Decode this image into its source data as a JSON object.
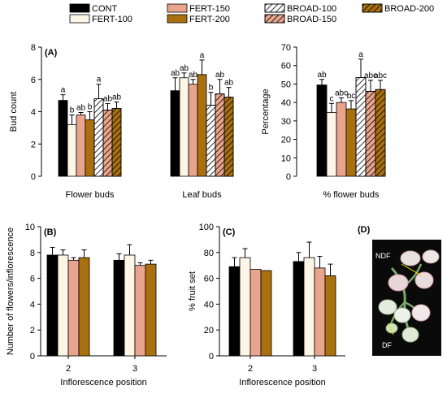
{
  "figure": {
    "legend": {
      "entries": [
        {
          "key": "CONT",
          "label": "CONT"
        },
        {
          "key": "FERT-100",
          "label": "FERT-100"
        },
        {
          "key": "FERT-150",
          "label": "FERT-150"
        },
        {
          "key": "FERT-200",
          "label": "FERT-200"
        },
        {
          "key": "BROAD-100",
          "label": "BROAD-100"
        },
        {
          "key": "BROAD-150",
          "label": "BROAD-150"
        },
        {
          "key": "BROAD-200",
          "label": "BROAD-200"
        }
      ]
    },
    "photo": {
      "panel": "(D)",
      "label_top": "NDF",
      "label_bottom": "DF"
    }
  },
  "treatments": {
    "CONT": {
      "fill": "#000000",
      "hatch": false
    },
    "FERT-100": {
      "fill": "#fdf5e6",
      "hatch": false
    },
    "FERT-150": {
      "fill": "#e8a48c",
      "hatch": false
    },
    "FERT-200": {
      "fill": "#a8700e",
      "hatch": false
    },
    "BROAD-100": {
      "fill": "#ffffff",
      "hatch": true
    },
    "BROAD-150": {
      "fill": "#e8a48c",
      "hatch": true
    },
    "BROAD-200": {
      "fill": "#a8700e",
      "hatch": true
    }
  },
  "chart_data": [
    {
      "panel": "(A)",
      "type": "bar",
      "ylabel": "Bud count",
      "ylim": [
        0,
        8
      ],
      "yticks": [
        0,
        2,
        4,
        6,
        8
      ],
      "categories": [
        "Flower buds",
        "Leaf buds"
      ],
      "series": [
        {
          "name": "CONT",
          "values": [
            4.7,
            5.3
          ],
          "errors": [
            0.35,
            0.8
          ],
          "letters": [
            "a",
            "ab"
          ]
        },
        {
          "name": "FERT-100",
          "values": [
            3.2,
            6.1
          ],
          "errors": [
            0.6,
            0.3
          ],
          "letters": [
            "b",
            "ab"
          ]
        },
        {
          "name": "FERT-150",
          "values": [
            3.8,
            5.7
          ],
          "errors": [
            0.15,
            0.3
          ],
          "letters": [
            "ab",
            "ab"
          ]
        },
        {
          "name": "FERT-200",
          "values": [
            3.5,
            6.3
          ],
          "errors": [
            0.5,
            0.9
          ],
          "letters": [
            "b",
            "a"
          ]
        },
        {
          "name": "BROAD-100",
          "values": [
            4.8,
            4.4
          ],
          "errors": [
            0.9,
            0.8
          ],
          "letters": [
            "a",
            "b"
          ]
        },
        {
          "name": "BROAD-150",
          "values": [
            4.1,
            5.1
          ],
          "errors": [
            0.4,
            0.9
          ],
          "letters": [
            "ab",
            "ab"
          ]
        },
        {
          "name": "BROAD-200",
          "values": [
            4.2,
            4.9
          ],
          "errors": [
            0.4,
            0.6
          ],
          "letters": [
            "ab",
            "ab"
          ]
        }
      ]
    },
    {
      "panel": "",
      "type": "bar",
      "ylabel": "Percentage",
      "ylim": [
        0,
        70
      ],
      "yticks": [
        0,
        10,
        20,
        30,
        40,
        50,
        60,
        70
      ],
      "categories": [
        "% flower buds"
      ],
      "series": [
        {
          "name": "CONT",
          "values": [
            49.5
          ],
          "errors": [
            3
          ],
          "letters": [
            "ab"
          ]
        },
        {
          "name": "FERT-100",
          "values": [
            34.5
          ],
          "errors": [
            5
          ],
          "letters": [
            "c"
          ]
        },
        {
          "name": "FERT-150",
          "values": [
            40
          ],
          "errors": [
            2.5
          ],
          "letters": [
            "abc"
          ]
        },
        {
          "name": "FERT-200",
          "values": [
            36.5
          ],
          "errors": [
            4.5
          ],
          "letters": [
            "bc"
          ]
        },
        {
          "name": "BROAD-100",
          "values": [
            53.5
          ],
          "errors": [
            10
          ],
          "letters": [
            "a"
          ]
        },
        {
          "name": "BROAD-150",
          "values": [
            46
          ],
          "errors": [
            6
          ],
          "letters": [
            "abc"
          ]
        },
        {
          "name": "BROAD-200",
          "values": [
            47
          ],
          "errors": [
            5
          ],
          "letters": [
            "abc"
          ]
        }
      ]
    },
    {
      "panel": "(B)",
      "type": "bar",
      "ylabel": "Number of flowers/inflorescence",
      "xlabel": "Inflorescence position",
      "ylim": [
        0,
        10
      ],
      "yticks": [
        0,
        2,
        4,
        6,
        8,
        10
      ],
      "categories": [
        "2",
        "3"
      ],
      "series": [
        {
          "name": "CONT",
          "values": [
            7.8,
            7.4
          ],
          "errors": [
            0.6,
            0.5
          ],
          "letters": [
            "",
            ""
          ]
        },
        {
          "name": "FERT-100",
          "values": [
            7.8,
            7.8
          ],
          "errors": [
            0.4,
            0.8
          ],
          "letters": [
            "",
            ""
          ]
        },
        {
          "name": "FERT-150",
          "values": [
            7.4,
            7.0
          ],
          "errors": [
            0.2,
            0.2
          ],
          "letters": [
            "",
            ""
          ]
        },
        {
          "name": "FERT-200",
          "values": [
            7.6,
            7.1
          ],
          "errors": [
            0.6,
            0.3
          ],
          "letters": [
            "",
            ""
          ]
        }
      ]
    },
    {
      "panel": "(C)",
      "type": "bar",
      "ylabel": "% fruit set",
      "xlabel": "Inflorescence position",
      "ylim": [
        0,
        100
      ],
      "yticks": [
        0,
        20,
        40,
        60,
        80,
        100
      ],
      "categories": [
        "2",
        "3"
      ],
      "series": [
        {
          "name": "CONT",
          "values": [
            69,
            73
          ],
          "errors": [
            7,
            7
          ],
          "letters": [
            "",
            ""
          ]
        },
        {
          "name": "FERT-100",
          "values": [
            76,
            76
          ],
          "errors": [
            7,
            12
          ],
          "letters": [
            "",
            ""
          ]
        },
        {
          "name": "FERT-150",
          "values": [
            67,
            68
          ],
          "errors": [
            0,
            9
          ],
          "letters": [
            "",
            ""
          ]
        },
        {
          "name": "FERT-200",
          "values": [
            66,
            62
          ],
          "errors": [
            0,
            9
          ],
          "letters": [
            "",
            ""
          ]
        }
      ]
    }
  ]
}
